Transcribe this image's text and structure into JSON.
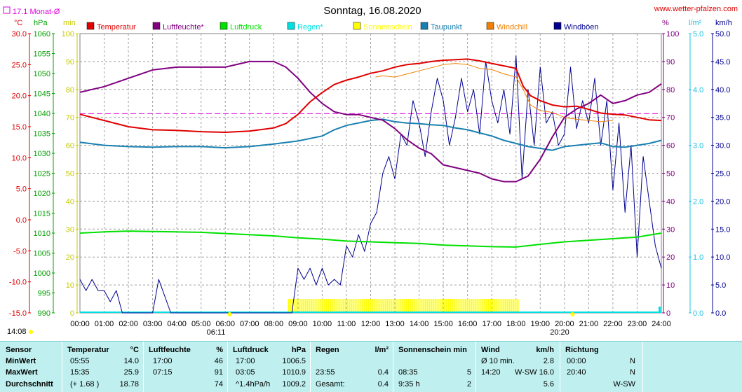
{
  "title": "Sonntag, 16.08.2020",
  "website": "www.wetter-pfalzen.com",
  "month_avg_label": "17.1 Monat-Ø",
  "units_left": [
    "°C",
    "hPa",
    "min"
  ],
  "units_right": [
    "%",
    "l/m²",
    "km/h"
  ],
  "time_labels": {
    "sunrise": "06:11",
    "sunset": "20:20",
    "start": "14:08"
  },
  "colors": {
    "temperatur": "#e00000",
    "luftfeuchte": "#800080",
    "luftdruck": "#00e000",
    "regen": "#00e0e0",
    "sonnenschein": "#ffff00",
    "taupunkt": "#1880b0",
    "windchill": "#f08000",
    "windboeen": "#000090",
    "month_avg": "#e000e0"
  },
  "chart_data": {
    "type": "line",
    "title": "Sonntag, 16.08.2020",
    "x_ticks": [
      "00:00",
      "01:00",
      "02:00",
      "03:00",
      "04:00",
      "05:00",
      "06:00",
      "07:00",
      "08:00",
      "09:00",
      "10:00",
      "11:00",
      "12:00",
      "13:00",
      "14:00",
      "15:00",
      "16:00",
      "17:00",
      "18:00",
      "19:00",
      "20:00",
      "21:00",
      "22:00",
      "23:00",
      "24:00"
    ],
    "axes": {
      "temp_c": {
        "range": [
          -15,
          30
        ],
        "ticks": [
          "30.0",
          "25.0",
          "20.0",
          "15.0",
          "10.0",
          "5.0",
          "0.0",
          "-5.0",
          "-10.0",
          "-15.0"
        ]
      },
      "pressure_hpa": {
        "range": [
          990,
          1060
        ],
        "ticks": [
          "1060",
          "1055",
          "1050",
          "1045",
          "1040",
          "1035",
          "1030",
          "1025",
          "1020",
          "1015",
          "1010",
          "1005",
          "1000",
          "995",
          "990"
        ]
      },
      "sun_min": {
        "range": [
          0,
          100
        ],
        "ticks": [
          "100",
          "90",
          "80",
          "70",
          "60",
          "50",
          "40",
          "30",
          "20",
          "10",
          "0"
        ]
      },
      "humidity_pct": {
        "range": [
          0,
          100
        ],
        "ticks": [
          "100",
          "90",
          "80",
          "70",
          "60",
          "50",
          "40",
          "30",
          "20",
          "10",
          "0"
        ]
      },
      "rain_lm2": {
        "range": [
          0,
          5
        ],
        "ticks": [
          "5.0",
          "4.0",
          "3.0",
          "2.0",
          "1.0",
          "0.0"
        ]
      },
      "wind_kmh": {
        "range": [
          0,
          50
        ],
        "ticks": [
          "50.0",
          "45.0",
          "40.0",
          "35.0",
          "30.0",
          "25.0",
          "20.0",
          "15.0",
          "10.0",
          "5.0",
          "0.0"
        ]
      }
    },
    "legend": [
      "Temperatur",
      "Luftfeuchte*",
      "Luftdruck",
      "Regen*",
      "Sonnenschein",
      "Taupunkt",
      "Windchill",
      "Windböen"
    ],
    "month_avg_temp": 17.1,
    "series": [
      {
        "name": "Temperatur",
        "axis": "temp_c",
        "x": [
          0,
          1,
          2,
          3,
          4,
          5,
          6,
          7,
          8,
          8.5,
          9,
          9.5,
          10,
          10.5,
          11,
          11.5,
          12,
          12.5,
          13,
          13.5,
          14,
          14.5,
          15,
          15.5,
          16,
          16.5,
          17,
          17.5,
          18,
          18.3,
          18.6,
          19,
          19.5,
          20,
          20.5,
          21,
          21.5,
          22,
          22.5,
          23,
          23.5,
          24
        ],
        "y": [
          17.0,
          16.0,
          15.0,
          14.5,
          14.4,
          14.2,
          14.1,
          14.3,
          14.8,
          15.5,
          17.0,
          19.0,
          20.5,
          21.8,
          22.5,
          23.0,
          23.6,
          24.0,
          24.6,
          25.0,
          25.2,
          25.5,
          25.7,
          25.8,
          25.9,
          25.6,
          25.2,
          24.8,
          24.4,
          21.5,
          20.0,
          19.2,
          18.5,
          18.2,
          18.3,
          17.8,
          17.2,
          17.0,
          16.9,
          16.5,
          16.1,
          16.0
        ]
      },
      {
        "name": "Luftfeuchte*",
        "axis": "humidity_pct",
        "x": [
          0,
          1,
          2,
          3,
          4,
          5,
          6,
          7,
          7.2,
          8,
          8.5,
          9,
          9.5,
          10,
          10.5,
          11,
          11.5,
          12,
          12.5,
          13,
          13.5,
          14,
          14.5,
          15,
          15.5,
          16,
          16.5,
          17,
          17.5,
          18,
          18.5,
          19,
          19.5,
          20,
          20.5,
          21,
          21.5,
          22,
          22.5,
          23,
          23.5,
          24
        ],
        "y": [
          79,
          81,
          84,
          87,
          88,
          88,
          88,
          90,
          90,
          90,
          88,
          84,
          79,
          75,
          72,
          71,
          71,
          70,
          69,
          66,
          62,
          59,
          57,
          53,
          52,
          51,
          50,
          48,
          47,
          47,
          49,
          55,
          63,
          70,
          73,
          75,
          78,
          75,
          76,
          78,
          79,
          82
        ]
      },
      {
        "name": "Luftdruck",
        "axis": "pressure_hpa",
        "x": [
          0,
          1,
          2,
          3,
          4,
          5,
          6,
          7,
          8,
          9,
          10,
          11,
          12,
          13,
          14,
          15,
          16,
          17,
          18,
          19,
          20,
          21,
          22,
          23,
          24
        ],
        "y": [
          1010.0,
          1010.3,
          1010.5,
          1010.4,
          1010.3,
          1010.2,
          1009.9,
          1009.6,
          1009.3,
          1008.8,
          1008.5,
          1008.0,
          1007.8,
          1007.6,
          1007.4,
          1007.0,
          1006.8,
          1006.6,
          1006.5,
          1007.2,
          1007.8,
          1008.2,
          1008.6,
          1009.0,
          1010.0
        ]
      },
      {
        "name": "Taupunkt",
        "axis": "temp_c",
        "x": [
          0,
          1,
          2,
          3,
          4,
          5,
          6,
          7,
          8,
          9,
          10,
          10.5,
          11,
          11.5,
          12,
          12.5,
          13,
          13.5,
          14,
          14.5,
          15,
          15.5,
          16,
          16.5,
          17,
          17.5,
          18,
          18.5,
          19,
          19.5,
          20,
          20.5,
          21,
          21.5,
          22,
          22.5,
          23,
          23.5,
          24
        ],
        "y": [
          12.5,
          12.0,
          11.8,
          11.7,
          11.8,
          11.8,
          11.6,
          11.8,
          12.2,
          12.7,
          13.5,
          14.5,
          15.2,
          15.6,
          16.0,
          16.2,
          15.8,
          15.6,
          15.5,
          15.3,
          15.2,
          14.8,
          14.5,
          14.0,
          13.5,
          12.8,
          12.3,
          11.8,
          11.5,
          11.2,
          11.8,
          12.0,
          12.2,
          12.4,
          11.8,
          11.7,
          12.0,
          12.3,
          12.8
        ]
      },
      {
        "name": "Windchill",
        "axis": "temp_c",
        "x": [
          12.2,
          12.5,
          13,
          13.5,
          14,
          14.5,
          15,
          15.5,
          16,
          16.5,
          17,
          17.5,
          18,
          18.3,
          18.6,
          19,
          19.5,
          20,
          20.5,
          21,
          21.5,
          22
        ],
        "y": [
          23.0,
          23.2,
          23.0,
          23.5,
          24.0,
          24.5,
          25.0,
          25.2,
          25.0,
          24.4,
          24.2,
          23.5,
          23.0,
          21.0,
          18.5,
          17.6,
          17.3,
          16.5,
          16.2,
          16.0,
          15.8,
          16.0
        ]
      },
      {
        "name": "Windböen",
        "axis": "wind_kmh",
        "x": [
          0,
          0.25,
          0.5,
          0.75,
          1,
          1.25,
          1.5,
          1.75,
          2,
          2.25,
          2.5,
          2.75,
          3,
          3.25,
          3.5,
          3.75,
          4,
          8.75,
          9,
          9.25,
          9.5,
          9.75,
          10,
          10.25,
          10.5,
          10.75,
          11,
          11.25,
          11.5,
          11.75,
          12,
          12.25,
          12.5,
          12.75,
          13,
          13.25,
          13.5,
          13.75,
          14,
          14.25,
          14.5,
          14.75,
          15,
          15.25,
          15.5,
          15.75,
          16,
          16.25,
          16.5,
          16.75,
          17,
          17.25,
          17.5,
          17.75,
          18,
          18.25,
          18.5,
          18.75,
          19,
          19.25,
          19.5,
          19.75,
          20,
          20.25,
          20.5,
          20.75,
          21,
          21.25,
          21.5,
          21.75,
          22,
          22.25,
          22.5,
          22.75,
          23,
          23.25,
          23.5,
          23.75,
          24
        ],
        "y": [
          6,
          4,
          6,
          4,
          4,
          2,
          4,
          0,
          0,
          0,
          0,
          0,
          0,
          6,
          3,
          0,
          0,
          0,
          8,
          6,
          8,
          5,
          8,
          5,
          6,
          5,
          12,
          10,
          14,
          11,
          16,
          18,
          25,
          28,
          24,
          32,
          30,
          38,
          34,
          28,
          36,
          42,
          38,
          30,
          35,
          42,
          36,
          40,
          32,
          45,
          38,
          34,
          40,
          32,
          46,
          24,
          40,
          30,
          44,
          34,
          36,
          30,
          32,
          44,
          33,
          38,
          34,
          42,
          30,
          38,
          22,
          34,
          18,
          30,
          10,
          28,
          20,
          12,
          8
        ]
      }
    ],
    "sonnenschein": {
      "axis": "sun_min",
      "from": "08:35",
      "to": "18:05",
      "value": 5
    }
  },
  "table": {
    "headers": {
      "sensor": "Sensor",
      "temp": "Temperatur",
      "temp_unit": "°C",
      "hum": "Luftfeuchte",
      "hum_unit": "%",
      "press": "Luftdruck",
      "press_unit": "hPa",
      "rain": "Regen",
      "rain_unit": "l/m²",
      "sun": "Sonnenschein min",
      "wind": "Wind",
      "wind_unit": "km/h",
      "dir": "Richtung"
    },
    "rows": [
      {
        "label": "MinWert",
        "temp_t": "05:55",
        "temp_v": "14.0",
        "hum_t": "17:00",
        "hum_v": "46",
        "press_t": "17:00",
        "press_v": "1006.5",
        "rain_t": "",
        "rain_v": "",
        "sun_t": "",
        "sun_v": "",
        "wind_t": "Ø 10 min.",
        "wind_v": "2.8",
        "dir_t": "00:00",
        "dir_v": "N"
      },
      {
        "label": "MaxWert",
        "temp_t": "15:35",
        "temp_v": "25.9",
        "hum_t": "07:15",
        "hum_v": "91",
        "press_t": "03:05",
        "press_v": "1010.9",
        "rain_t": "23:55",
        "rain_v": "0.4",
        "sun_t": "08:35",
        "sun_v": "5",
        "wind_t": "14:20",
        "wind_v": "W-SW 16.0",
        "dir_t": "20:40",
        "dir_v": "N"
      },
      {
        "label": "Durchschnitt",
        "temp_t": "(+ 1.68 )",
        "temp_v": "18.78",
        "hum_t": "",
        "hum_v": "74",
        "press_t": "^1.4hPa/h",
        "press_v": "1009.2",
        "rain_t": "Gesamt:",
        "rain_v": "0.4",
        "sun_t": "9:35 h",
        "sun_v": "2",
        "wind_t": "",
        "wind_v": "5.6",
        "dir_t": "",
        "dir_v": "W-SW"
      }
    ]
  }
}
